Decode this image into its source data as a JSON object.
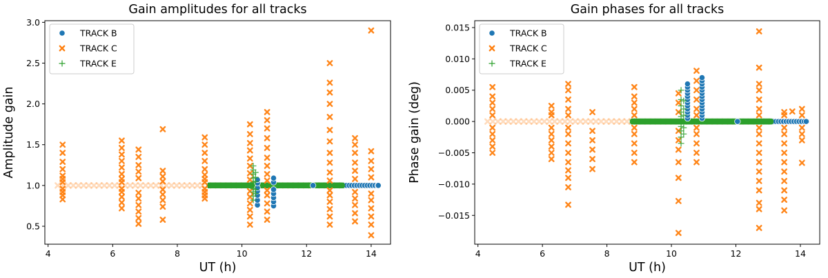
{
  "chart_data": [
    {
      "type": "scatter",
      "title": "Gain amplitudes for all tracks",
      "xlabel": "UT (h)",
      "ylabel": "Amplitude gain",
      "xlim": [
        3.9,
        14.6
      ],
      "ylim": [
        0.28,
        3.02
      ],
      "xticks": [
        4,
        6,
        8,
        10,
        12,
        14
      ],
      "xtick_labels": [
        "4",
        "6",
        "8",
        "10",
        "12",
        "14"
      ],
      "yticks": [
        0.5,
        1.0,
        1.5,
        2.0,
        2.5,
        3.0
      ],
      "ytick_labels": [
        "0.5",
        "1.0",
        "1.5",
        "2.0",
        "2.5",
        "3.0"
      ],
      "legend": {
        "position": "top-left",
        "entries": [
          "TRACK B",
          "TRACK C",
          "TRACK E"
        ]
      },
      "grid": false,
      "series": [
        {
          "name": "TRACK B",
          "marker": "circle",
          "color": "#1f77b4",
          "flat_line": {
            "value": 1.0,
            "x_start": 9.0,
            "x_end": 14.2,
            "step": 0.08
          },
          "columns": [
            {
              "x": 10.48,
              "values": [
                0.76,
                0.82,
                0.88,
                0.93,
                0.97,
                1.03,
                1.07
              ]
            },
            {
              "x": 10.98,
              "values": [
                0.75,
                0.8,
                0.85,
                0.9,
                0.95,
                1.04,
                1.09
              ]
            }
          ],
          "points": [
            [
              14.22,
              1.0
            ],
            [
              12.2,
              1.0
            ]
          ]
        },
        {
          "name": "TRACK C",
          "marker": "x",
          "color": "#ff7f0e",
          "flat_line": {
            "value": 1.0,
            "x_start": 4.3,
            "x_end": 14.2,
            "step": 0.16
          },
          "columns": [
            {
              "x": 4.45,
              "values": [
                0.83,
                0.88,
                0.92,
                0.96,
                1.04,
                1.08,
                1.12,
                1.2,
                1.29,
                1.4,
                1.5
              ]
            },
            {
              "x": 6.28,
              "values": [
                0.72,
                0.79,
                0.86,
                0.92,
                0.96,
                1.04,
                1.08,
                1.14,
                1.22,
                1.3,
                1.38,
                1.46,
                1.55
              ]
            },
            {
              "x": 6.8,
              "values": [
                0.53,
                0.6,
                0.68,
                0.76,
                0.84,
                0.91,
                1.09,
                1.17,
                1.25,
                1.35,
                1.44
              ]
            },
            {
              "x": 7.55,
              "values": [
                0.58,
                0.74,
                0.82,
                0.89,
                0.95,
                1.05,
                1.11,
                1.18,
                1.69
              ]
            },
            {
              "x": 8.85,
              "values": [
                0.84,
                0.88,
                0.92,
                0.96,
                1.04,
                1.08,
                1.13,
                1.2,
                1.3,
                1.4,
                1.5,
                1.59
              ]
            },
            {
              "x": 10.25,
              "values": [
                0.52,
                0.62,
                0.7,
                0.78,
                0.86,
                0.93,
                1.07,
                1.15,
                1.24,
                1.33,
                1.43,
                1.52,
                1.63,
                1.75
              ]
            },
            {
              "x": 10.78,
              "values": [
                0.58,
                0.68,
                0.78,
                0.88,
                0.94,
                1.06,
                1.14,
                1.24,
                1.34,
                1.46,
                1.58,
                1.7,
                1.8,
                1.9
              ]
            },
            {
              "x": 12.72,
              "values": [
                0.52,
                0.62,
                0.71,
                0.8,
                0.88,
                0.94,
                1.06,
                1.16,
                1.28,
                1.4,
                1.54,
                1.68,
                1.84,
                2.0,
                2.14,
                2.26,
                2.5
              ]
            },
            {
              "x": 13.5,
              "values": [
                0.56,
                0.66,
                0.76,
                0.84,
                0.92,
                1.08,
                1.18,
                1.28,
                1.4,
                1.5,
                1.58
              ]
            },
            {
              "x": 14.0,
              "values": [
                0.39,
                0.52,
                0.62,
                0.72,
                0.82,
                0.9,
                1.1,
                1.2,
                1.3,
                1.42,
                2.9
              ]
            }
          ]
        },
        {
          "name": "TRACK E",
          "marker": "plus",
          "color": "#2ca02c",
          "flat_line": {
            "value": 1.0,
            "x_start": 9.0,
            "x_end": 13.1,
            "step": 0.045
          },
          "columns": [
            {
              "x": 10.35,
              "values": [
                0.82,
                0.87,
                0.92,
                0.96,
                1.04,
                1.09,
                1.14,
                1.19,
                1.24
              ]
            },
            {
              "x": 10.42,
              "values": [
                0.9,
                0.95,
                1.05,
                1.1,
                1.16
              ]
            }
          ]
        }
      ]
    },
    {
      "type": "scatter",
      "title": "Gain phases for all tracks",
      "xlabel": "UT (h)",
      "ylabel": "Phase gain (deg)",
      "xlim": [
        3.9,
        14.6
      ],
      "ylim": [
        -0.0196,
        0.0161
      ],
      "xticks": [
        4,
        6,
        8,
        10,
        12,
        14
      ],
      "xtick_labels": [
        "4",
        "6",
        "8",
        "10",
        "12",
        "14"
      ],
      "yticks": [
        -0.015,
        -0.01,
        -0.005,
        0.0,
        0.005,
        0.01,
        0.015
      ],
      "ytick_labels": [
        "−0.015",
        "−0.010",
        "−0.005",
        "0.000",
        "0.005",
        "0.010",
        "0.015"
      ],
      "legend": {
        "position": "top-left",
        "entries": [
          "TRACK B",
          "TRACK C",
          "TRACK E"
        ]
      },
      "grid": false,
      "series": [
        {
          "name": "TRACK B",
          "marker": "circle",
          "color": "#1f77b4",
          "flat_line": {
            "value": 0.0,
            "x_start": 9.0,
            "x_end": 14.2,
            "step": 0.08
          },
          "columns": [
            {
              "x": 10.5,
              "values": [
                0.0005,
                0.001,
                0.0015,
                0.002,
                0.0025,
                0.003,
                0.0035,
                0.004,
                0.0045,
                0.005,
                0.0055,
                0.006
              ]
            },
            {
              "x": 10.95,
              "values": [
                0.0005,
                0.001,
                0.0015,
                0.002,
                0.0025,
                0.003,
                0.0035,
                0.004,
                0.0045,
                0.005,
                0.0055,
                0.006,
                0.0065,
                0.007
              ]
            }
          ],
          "points": [
            [
              14.18,
              0.0
            ],
            [
              12.05,
              0.0
            ]
          ]
        },
        {
          "name": "TRACK C",
          "marker": "x",
          "color": "#ff7f0e",
          "flat_line": {
            "value": 0.0,
            "x_start": 4.3,
            "x_end": 14.2,
            "step": 0.16
          },
          "columns": [
            {
              "x": 4.45,
              "values": [
                -0.005,
                -0.004,
                -0.003,
                -0.002,
                -0.001,
                0.001,
                0.002,
                0.003,
                0.004,
                0.0055
              ]
            },
            {
              "x": 6.28,
              "values": [
                -0.006,
                -0.005,
                -0.004,
                -0.003,
                -0.002,
                -0.001,
                0.001,
                0.0015,
                0.0025
              ]
            },
            {
              "x": 6.8,
              "values": [
                -0.0133,
                -0.0105,
                -0.009,
                -0.0078,
                -0.0065,
                -0.005,
                -0.0035,
                -0.002,
                -0.001,
                0.001,
                0.002,
                0.0035,
                0.005,
                0.006
              ]
            },
            {
              "x": 7.55,
              "values": [
                -0.0076,
                -0.006,
                -0.0045,
                -0.003,
                -0.0015,
                0.0015
              ]
            },
            {
              "x": 8.85,
              "values": [
                -0.0065,
                -0.005,
                -0.0035,
                -0.002,
                -0.001,
                0.001,
                0.002,
                0.003,
                0.004,
                0.0055
              ]
            },
            {
              "x": 10.22,
              "values": [
                -0.0178,
                -0.0127,
                -0.009,
                -0.0065,
                -0.0045,
                -0.003,
                -0.0015,
                0.0015,
                0.003,
                0.0045
              ]
            },
            {
              "x": 10.78,
              "values": [
                -0.0065,
                -0.005,
                -0.0035,
                -0.002,
                -0.001,
                0.001,
                0.002,
                0.0035,
                0.005,
                0.0065,
                0.0081
              ]
            },
            {
              "x": 12.72,
              "values": [
                -0.017,
                -0.014,
                -0.013,
                -0.011,
                -0.0095,
                -0.008,
                -0.0065,
                -0.005,
                -0.0035,
                -0.002,
                -0.001,
                0.001,
                0.002,
                0.0035,
                0.005,
                0.006,
                0.0086,
                0.0144
              ]
            },
            {
              "x": 13.5,
              "values": [
                -0.0142,
                -0.0125,
                -0.011,
                -0.0095,
                -0.008,
                -0.0065,
                -0.005,
                -0.0035,
                -0.002,
                -0.001,
                0.001,
                0.0015
              ]
            },
            {
              "x": 14.05,
              "values": [
                -0.0066,
                -0.003,
                -0.002,
                -0.001,
                0.001,
                0.002
              ]
            },
            {
              "x": 13.75,
              "values": [
                0.0016
              ]
            }
          ]
        },
        {
          "name": "TRACK E",
          "marker": "plus",
          "color": "#2ca02c",
          "flat_line": {
            "value": 0.0,
            "x_start": 8.8,
            "x_end": 13.1,
            "step": 0.045
          },
          "columns": [
            {
              "x": 10.3,
              "values": [
                -0.0035,
                -0.0025,
                -0.0015,
                -0.0008,
                0.0008,
                0.0015,
                0.0025,
                0.0035,
                0.005
              ]
            },
            {
              "x": 10.38,
              "values": [
                -0.002,
                -0.001,
                0.001,
                0.002,
                0.0033
              ]
            }
          ]
        }
      ]
    }
  ]
}
